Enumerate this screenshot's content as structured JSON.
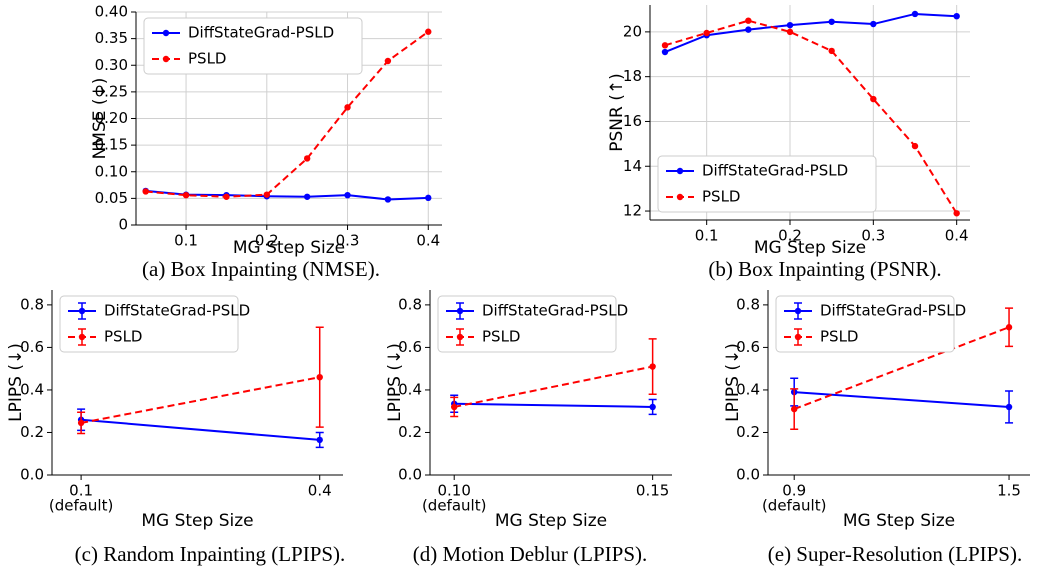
{
  "chart_data": [
    {
      "type": "line",
      "caption": "(a) Box Inpainting (NMSE).",
      "xlabel": "MG Step Size",
      "ylabel": "NMSE (↓)",
      "x": [
        0.05,
        0.1,
        0.15,
        0.2,
        0.25,
        0.3,
        0.35,
        0.4
      ],
      "series": [
        {
          "name": "DiffStateGrad-PSLD",
          "color": "#0000ff",
          "linestyle": "solid",
          "values": [
            0.064,
            0.057,
            0.056,
            0.054,
            0.053,
            0.056,
            0.048,
            0.051
          ]
        },
        {
          "name": "PSLD",
          "color": "#ff0000",
          "linestyle": "dashed",
          "values": [
            0.063,
            0.056,
            0.053,
            0.057,
            0.125,
            0.221,
            0.308,
            0.363
          ]
        }
      ],
      "xlim": [
        0.038,
        0.417
      ],
      "xticks": [
        {
          "value": 0.1,
          "label": "0.1"
        },
        {
          "value": 0.2,
          "label": "0.2"
        },
        {
          "value": 0.3,
          "label": "0.3"
        },
        {
          "value": 0.4,
          "label": "0.4"
        }
      ],
      "ylim": [
        0,
        0.4
      ],
      "yticks": [
        0,
        0.05,
        {
          "value": 0.1,
          "label": "0.10"
        },
        0.15,
        {
          "value": 0.2,
          "label": "0.20"
        },
        0.25,
        {
          "value": 0.3,
          "label": "0.30"
        },
        0.35,
        {
          "value": 0.4,
          "label": "0.40"
        }
      ],
      "grid": true,
      "legend": "upper left"
    },
    {
      "type": "line",
      "caption": "(b) Box Inpainting (PSNR).",
      "xlabel": "MG Step Size",
      "ylabel": "PSNR (↑)",
      "x": [
        0.05,
        0.1,
        0.15,
        0.2,
        0.25,
        0.3,
        0.35,
        0.4
      ],
      "series": [
        {
          "name": "DiffStateGrad-PSLD",
          "color": "#0000ff",
          "linestyle": "solid",
          "values": [
            19.1,
            19.85,
            20.1,
            20.3,
            20.45,
            20.35,
            20.8,
            20.7
          ]
        },
        {
          "name": "PSLD",
          "color": "#ff0000",
          "linestyle": "dashed",
          "values": [
            19.4,
            19.95,
            20.5,
            20.0,
            19.15,
            17.0,
            14.9,
            11.9
          ]
        }
      ],
      "xlim": [
        0.032,
        0.416
      ],
      "xticks": [
        {
          "value": 0.1,
          "label": "0.1"
        },
        {
          "value": 0.2,
          "label": "0.2"
        },
        {
          "value": 0.3,
          "label": "0.3"
        },
        {
          "value": 0.4,
          "label": "0.4"
        }
      ],
      "ylim": [
        11.6,
        21.2
      ],
      "yticks": [
        12,
        14,
        16,
        18,
        20
      ],
      "grid": true,
      "legend": "lower left"
    },
    {
      "type": "line",
      "caption": "(c) Random Inpainting (LPIPS).",
      "xlabel": "MG Step Size",
      "ylabel": "LPIPS (↓)",
      "categories": [
        "0.1",
        "0.4"
      ],
      "default_note": "(default)",
      "series": [
        {
          "name": "DiffStateGrad-PSLD",
          "color": "#0000ff",
          "linestyle": "solid",
          "values": [
            0.26,
            0.165
          ],
          "errors": [
            0.05,
            0.035
          ]
        },
        {
          "name": "PSLD",
          "color": "#ff0000",
          "linestyle": "dashed",
          "values": [
            0.245,
            0.46
          ],
          "errors": [
            0.05,
            0.235
          ]
        }
      ],
      "ylim": [
        0,
        0.87
      ],
      "yticks": [
        {
          "value": 0,
          "label": "0.0"
        },
        0.2,
        0.4,
        0.6,
        0.8
      ],
      "grid": false,
      "legend": "upper left"
    },
    {
      "type": "line",
      "caption": "(d) Motion Deblur (LPIPS).",
      "xlabel": "MG Step Size",
      "ylabel": "LPIPS (↓)",
      "categories": [
        "0.10",
        "0.15"
      ],
      "default_note": "(default)",
      "series": [
        {
          "name": "DiffStateGrad-PSLD",
          "color": "#0000ff",
          "linestyle": "solid",
          "values": [
            0.335,
            0.32
          ],
          "errors": [
            0.04,
            0.035
          ]
        },
        {
          "name": "PSLD",
          "color": "#ff0000",
          "linestyle": "dashed",
          "values": [
            0.32,
            0.51
          ],
          "errors": [
            0.045,
            0.13
          ]
        }
      ],
      "ylim": [
        0,
        0.87
      ],
      "yticks": [
        {
          "value": 0,
          "label": "0.0"
        },
        0.2,
        0.4,
        0.6,
        0.8
      ],
      "grid": false,
      "legend": "upper left"
    },
    {
      "type": "line",
      "caption": "(e) Super-Resolution (LPIPS).",
      "xlabel": "MG Step Size",
      "ylabel": "LPIPS (↓)",
      "categories": [
        "0.9",
        "1.5"
      ],
      "default_note": "(default)",
      "series": [
        {
          "name": "DiffStateGrad-PSLD",
          "color": "#0000ff",
          "linestyle": "solid",
          "values": [
            0.39,
            0.32
          ],
          "errors": [
            0.065,
            0.075
          ]
        },
        {
          "name": "PSLD",
          "color": "#ff0000",
          "linestyle": "dashed",
          "values": [
            0.31,
            0.695
          ],
          "errors": [
            0.095,
            0.09
          ]
        }
      ],
      "ylim": [
        0,
        0.87
      ],
      "yticks": [
        {
          "value": 0,
          "label": "0.0"
        },
        0.2,
        0.4,
        0.6,
        0.8
      ],
      "grid": false,
      "legend": "upper left"
    }
  ]
}
